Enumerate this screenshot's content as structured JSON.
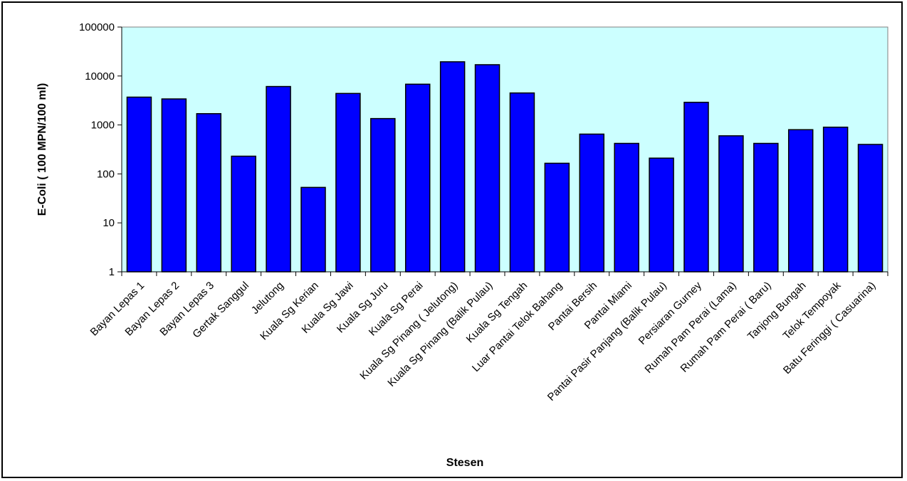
{
  "chart_data": {
    "type": "bar",
    "title": "",
    "xlabel": "Stesen",
    "ylabel": "E-Coli ( 100 MPN/100 ml)",
    "yscale": "log",
    "ylim": [
      1,
      100000
    ],
    "yticks": [
      "1",
      "10",
      "100",
      "1000",
      "10000",
      "100000"
    ],
    "grid": false,
    "legend": "none",
    "categories": [
      "Bayan Lepas 1",
      "Bayan Lepas 2",
      "Bayan Lepas 3",
      "Gertak Sanggul",
      "Jelutong",
      "Kuala Sg  Kerian",
      "Kuala Sg Jawi",
      "Kuala Sg Juru",
      "Kuala Sg Perai",
      "Kuala Sg Pinang ( Jelutong)",
      "Kuala Sg Pinang (Balik Pulau)",
      "Kuala Sg Tengah",
      "Luar Pantai Telok Bahang",
      "Pantai Bersih",
      "Pantai Miami",
      "Pantai Pasir Panjang (Balik Pulau)",
      "Persiaran Gurney",
      "Rumah Pam Perai (Lama)",
      "Rumah Pam Perai ( Baru)",
      "Tanjong Bungah",
      "Telok Tempoyak",
      "Batu Feringgi ( Casuarina)"
    ],
    "values": [
      3700,
      3400,
      1700,
      230,
      6100,
      53,
      4400,
      1350,
      6800,
      19500,
      17000,
      4500,
      165,
      650,
      420,
      210,
      2900,
      600,
      420,
      800,
      900,
      400
    ],
    "colors": {
      "bar": "#0000ff",
      "plot_background": "#ccffff",
      "page_background": "#ffffff",
      "outline": "#000000",
      "plot_border": "#808080"
    }
  }
}
